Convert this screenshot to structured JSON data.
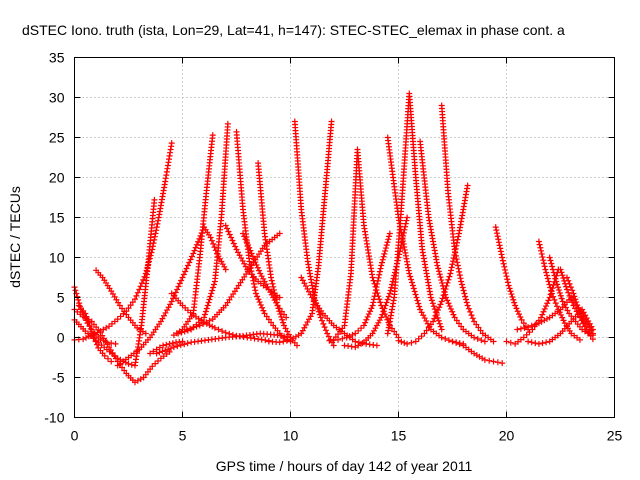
{
  "chart_data": {
    "type": "scatter",
    "title": "dSTEC Iono. truth (ista, Lon=29, Lat=41, h=147): STEC-STEC_elemax in phase cont. a",
    "xlabel": "GPS time / hours of day 142 of year 2011",
    "ylabel": "dSTEC  / TECUs",
    "xlim": [
      0,
      25
    ],
    "ylim": [
      -10,
      35
    ],
    "x_ticks": [
      0,
      5,
      10,
      15,
      20,
      25
    ],
    "y_ticks": [
      -10,
      -5,
      0,
      5,
      10,
      15,
      20,
      25,
      30,
      35
    ],
    "x_tick_labels": [
      "0",
      "5",
      "10",
      "15",
      "20",
      "25"
    ],
    "y_tick_labels": [
      "-10",
      "-5",
      "0",
      "5",
      "10",
      "15",
      "20",
      "25",
      "30",
      "35"
    ],
    "grid": true,
    "marker": "plus",
    "color": "#ff0000",
    "arcs": [
      {
        "x": [
          0.0,
          0.3,
          0.6,
          0.9,
          1.2,
          1.5,
          1.9
        ],
        "y": [
          6.3,
          3.5,
          1.8,
          0.6,
          -0.2,
          -0.6,
          -0.8
        ]
      },
      {
        "x": [
          0.0,
          0.4,
          0.8,
          1.2,
          1.6,
          2.0,
          2.4,
          2.8,
          3.0,
          3.3,
          3.6,
          3.9,
          4.2,
          4.5
        ],
        "y": [
          -0.3,
          -0.2,
          0.3,
          0.8,
          1.4,
          2.3,
          3.3,
          4.8,
          6.0,
          8.0,
          11.0,
          15.0,
          19.5,
          24.3
        ]
      },
      {
        "x": [
          0.0,
          0.5,
          1.0,
          1.5,
          2.0,
          2.5,
          2.8,
          3.1,
          3.4,
          3.7
        ],
        "y": [
          2.2,
          0.8,
          -0.4,
          -1.5,
          -2.6,
          -3.3,
          -3.5,
          1.5,
          9.0,
          17.2
        ]
      },
      {
        "x": [
          0.0,
          0.4,
          0.8,
          1.2,
          1.6,
          2.0,
          2.4,
          2.8,
          3.2,
          3.6,
          4.0,
          4.4
        ],
        "y": [
          3.5,
          2.6,
          2.0,
          0.6,
          -1.2,
          -3.0,
          -4.5,
          -5.6,
          -5.0,
          -3.6,
          -2.6,
          -1.8
        ]
      },
      {
        "x": [
          0.2,
          0.5,
          0.8,
          1.1,
          1.4,
          1.7
        ],
        "y": [
          4.0,
          3.0,
          0.7,
          -1.3,
          -2.3,
          -3.0
        ]
      },
      {
        "x": [
          1.0,
          1.3,
          1.7,
          2.1,
          2.5,
          2.9,
          3.3
        ],
        "y": [
          8.4,
          7.5,
          5.8,
          4.0,
          2.5,
          1.2,
          0.5
        ]
      },
      {
        "x": [
          3.5,
          3.8,
          4.1,
          4.4,
          4.7,
          5.0
        ],
        "y": [
          -2.0,
          -1.5,
          -1.0,
          -0.8,
          -0.6,
          -0.5
        ]
      },
      {
        "x": [
          2.0,
          2.5,
          3.0,
          3.5,
          4.0,
          4.5,
          5.0,
          5.5,
          6.0,
          6.3,
          6.6,
          7.0
        ],
        "y": [
          -3.5,
          -2.5,
          -1.5,
          0.0,
          2.0,
          4.5,
          7.5,
          10.5,
          13.8,
          12.5,
          10.5,
          8.5
        ]
      },
      {
        "x": [
          4.5,
          5.0,
          5.5,
          6.0,
          6.5,
          7.0,
          7.5,
          8.0,
          8.5,
          9.0
        ],
        "y": [
          5.5,
          4.0,
          2.8,
          1.9,
          1.2,
          0.6,
          0.2,
          0.0,
          -0.2,
          -0.4
        ]
      },
      {
        "x": [
          4.6,
          5.0,
          5.5,
          5.8,
          6.1,
          6.4
        ],
        "y": [
          0.3,
          1.0,
          3.0,
          10.0,
          18.0,
          25.3
        ]
      },
      {
        "x": [
          4.8,
          5.4,
          6.0,
          6.5,
          6.8,
          7.1
        ],
        "y": [
          0.5,
          1.0,
          2.5,
          7.0,
          15.0,
          26.7
        ]
      },
      {
        "x": [
          3.8,
          4.6,
          5.4,
          6.2,
          7.0,
          7.8,
          8.6,
          9.4,
          10.0
        ],
        "y": [
          -2.0,
          -1.2,
          -0.6,
          -0.3,
          0.0,
          0.2,
          0.5,
          0.3,
          0.0
        ]
      },
      {
        "x": [
          5.2,
          5.8,
          6.4,
          7.0,
          7.6,
          8.2,
          8.8,
          9.5
        ],
        "y": [
          1.0,
          1.5,
          2.3,
          4.0,
          6.5,
          9.0,
          11.5,
          13.0
        ]
      },
      {
        "x": [
          7.5,
          7.8,
          8.1,
          8.4,
          8.8,
          9.2,
          9.6,
          10.0
        ],
        "y": [
          25.7,
          16.0,
          9.5,
          5.5,
          3.0,
          1.5,
          0.2,
          -0.5
        ]
      },
      {
        "x": [
          8.5,
          8.8,
          9.1,
          9.4,
          9.7,
          10.0,
          10.3
        ],
        "y": [
          21.8,
          13.0,
          7.5,
          4.0,
          1.5,
          0.0,
          -1.0
        ]
      },
      {
        "x": [
          7.0,
          7.5,
          8.0,
          8.5,
          9.0,
          9.5
        ],
        "y": [
          14.0,
          11.0,
          8.5,
          7.0,
          6.0,
          5.0
        ]
      },
      {
        "x": [
          7.8,
          8.2,
          8.6,
          9.0,
          9.4,
          9.8
        ],
        "y": [
          13.0,
          10.5,
          8.0,
          6.0,
          4.0,
          2.5
        ]
      },
      {
        "x": [
          10.2,
          10.5,
          10.8,
          11.1,
          11.4,
          11.7,
          12.0
        ],
        "y": [
          27.0,
          16.0,
          9.5,
          5.0,
          2.5,
          0.5,
          -1.0
        ]
      },
      {
        "x": [
          9.0,
          9.5,
          10.0,
          10.5,
          11.0,
          11.3,
          11.6,
          11.9
        ],
        "y": [
          -0.5,
          -0.6,
          -0.3,
          0.5,
          3.0,
          9.0,
          18.0,
          27.0
        ]
      },
      {
        "x": [
          10.5,
          11.0,
          11.5,
          12.0,
          12.5,
          13.0,
          13.5,
          14.0
        ],
        "y": [
          7.5,
          5.0,
          3.0,
          1.5,
          0.5,
          -0.5,
          -0.8,
          -1.0
        ]
      },
      {
        "x": [
          11.8,
          12.2,
          12.6,
          13.0,
          13.4,
          13.8,
          14.2,
          14.6
        ],
        "y": [
          -0.4,
          -0.3,
          0.0,
          0.5,
          1.5,
          4.0,
          9.0,
          13.0
        ]
      },
      {
        "x": [
          12.0,
          12.5,
          12.8,
          13.1,
          13.4,
          13.8,
          14.2,
          14.6,
          15.0
        ],
        "y": [
          -0.3,
          1.5,
          8.0,
          23.5,
          14.0,
          7.5,
          4.0,
          1.5,
          0.0
        ]
      },
      {
        "x": [
          12.5,
          13.0,
          13.4,
          13.8,
          14.2,
          14.6,
          15.0,
          15.4
        ],
        "y": [
          -1.0,
          -1.2,
          -0.6,
          0.5,
          2.5,
          5.5,
          10.0,
          15.0
        ]
      },
      {
        "x": [
          14.5,
          14.8,
          15.1,
          15.5,
          15.8,
          16.1,
          16.5,
          17.0
        ],
        "y": [
          0.5,
          5.0,
          15.0,
          30.5,
          20.0,
          11.0,
          5.0,
          1.0
        ]
      },
      {
        "x": [
          14.5,
          15.0,
          15.5,
          16.0,
          16.5,
          17.0,
          17.5,
          18.0
        ],
        "y": [
          25.0,
          15.0,
          8.0,
          3.5,
          1.0,
          0.0,
          -0.5,
          -0.8
        ]
      },
      {
        "x": [
          15.0,
          15.4,
          15.8,
          16.2,
          16.6,
          17.0,
          17.4,
          17.8,
          18.2
        ],
        "y": [
          -0.4,
          -0.8,
          -0.5,
          0.5,
          2.0,
          4.5,
          8.0,
          13.0,
          19.0
        ]
      },
      {
        "x": [
          16.0,
          16.4,
          16.8,
          17.2,
          17.6,
          18.0,
          18.5,
          19.0
        ],
        "y": [
          24.5,
          15.0,
          9.0,
          5.0,
          2.5,
          1.0,
          0.0,
          -0.5
        ]
      },
      {
        "x": [
          17.0,
          17.3,
          17.6,
          17.9,
          18.2,
          18.5,
          18.9,
          19.4
        ],
        "y": [
          29.0,
          18.0,
          11.0,
          7.0,
          4.0,
          2.0,
          0.5,
          -0.5
        ]
      },
      {
        "x": [
          17.5,
          18.0,
          18.5,
          19.0,
          19.4,
          19.8
        ],
        "y": [
          -0.5,
          -1.0,
          -2.0,
          -2.8,
          -3.0,
          -3.2
        ]
      },
      {
        "x": [
          19.5,
          19.8,
          20.1,
          20.4,
          20.7,
          21.0
        ],
        "y": [
          13.8,
          10.0,
          6.5,
          4.0,
          2.2,
          1.0
        ]
      },
      {
        "x": [
          20.0,
          20.4,
          20.8,
          21.2,
          21.6,
          22.0,
          22.4
        ],
        "y": [
          -0.5,
          -0.8,
          0.0,
          1.0,
          2.5,
          5.0,
          8.5
        ]
      },
      {
        "x": [
          21.5,
          21.8,
          22.1,
          22.4,
          22.7,
          23.0,
          23.4
        ],
        "y": [
          12.0,
          8.5,
          5.5,
          3.5,
          1.8,
          0.5,
          -0.3
        ]
      },
      {
        "x": [
          22.0,
          22.3,
          22.6,
          22.9,
          23.2,
          23.5,
          23.9
        ],
        "y": [
          10.0,
          7.0,
          4.5,
          3.0,
          2.0,
          1.0,
          0.3
        ]
      },
      {
        "x": [
          22.5,
          22.8,
          23.1,
          23.4,
          23.7,
          24.0
        ],
        "y": [
          8.5,
          6.0,
          4.0,
          2.5,
          1.0,
          0.3
        ]
      },
      {
        "x": [
          20.5,
          21.0,
          21.5,
          22.0,
          22.5,
          23.0,
          23.5,
          24.0
        ],
        "y": [
          1.0,
          1.3,
          1.8,
          2.5,
          3.5,
          5.0,
          3.0,
          0.5
        ]
      },
      {
        "x": [
          21.0,
          21.5,
          22.0,
          22.5,
          23.0,
          23.5,
          24.0
        ],
        "y": [
          -0.5,
          -0.8,
          -0.5,
          0.5,
          2.0,
          3.5,
          1.0
        ]
      },
      {
        "x": [
          22.8,
          23.1,
          23.4,
          23.7,
          24.0
        ],
        "y": [
          7.5,
          5.5,
          3.0,
          1.0,
          -0.2
        ]
      }
    ]
  }
}
